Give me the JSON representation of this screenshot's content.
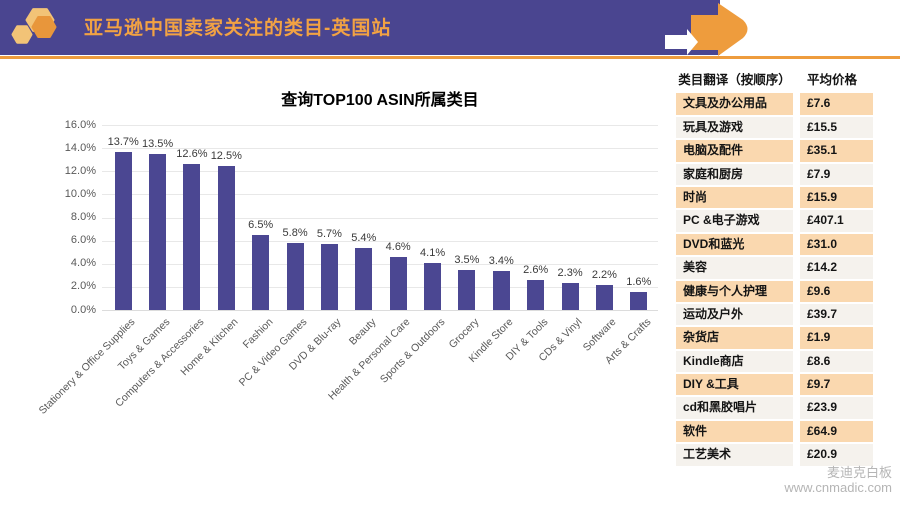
{
  "header": {
    "title": "亚马逊中国卖家关注的类目-英国站",
    "bg_color": "#4A4590",
    "title_color": "#F2A243",
    "accent_color": "#EE9C3D",
    "logo_icon": "hexagon-cluster-logo",
    "logo_colors": [
      "#F2C377",
      "#E8963B"
    ],
    "decor_icons": [
      "white-arrow",
      "orange-arrow"
    ]
  },
  "chart_data": {
    "type": "bar",
    "title": "查询TOP100 ASIN所属类目",
    "categories": [
      "Stationery & Office Supplies",
      "Toys & Games",
      "Computers & Accessories",
      "Home & Kitchen",
      "Fashion",
      "PC & Video Games",
      "DVD & Blu-ray",
      "Beauty",
      "Health & Personal Care",
      "Sports & Outdoors",
      "Grocery",
      "Kindle Store",
      "DIY & Tools",
      "CDs & Vinyl",
      "Software",
      "Arts & Crafts"
    ],
    "values": [
      13.7,
      13.5,
      12.6,
      12.5,
      6.5,
      5.8,
      5.7,
      5.4,
      4.6,
      4.1,
      3.5,
      3.4,
      2.6,
      2.3,
      2.2,
      1.6
    ],
    "value_suffix": "%",
    "ylim": [
      0,
      16
    ],
    "ytick_step": 2,
    "ytick_labels": [
      "0.0%",
      "2.0%",
      "4.0%",
      "6.0%",
      "8.0%",
      "10.0%",
      "12.0%",
      "14.0%",
      "16.0%"
    ],
    "bar_color": "#4B4792",
    "grid": true,
    "legend": null
  },
  "table": {
    "headers": [
      "类目翻译（按顺序）",
      "平均价格"
    ],
    "rows": [
      [
        "文具及办公用品",
        "£7.6"
      ],
      [
        "玩具及游戏",
        "£15.5"
      ],
      [
        "电脑及配件",
        "£35.1"
      ],
      [
        "家庭和厨房",
        "£7.9"
      ],
      [
        "时尚",
        "£15.9"
      ],
      [
        "PC &电子游戏",
        "£407.1"
      ],
      [
        "DVD和蓝光",
        "£31.0"
      ],
      [
        "美容",
        "£14.2"
      ],
      [
        "健康与个人护理",
        "£9.6"
      ],
      [
        "运动及户外",
        "£39.7"
      ],
      [
        "杂货店",
        "£1.9"
      ],
      [
        "Kindle商店",
        "£8.6"
      ],
      [
        "DIY &工具",
        "£9.7"
      ],
      [
        "cd和黑胶唱片",
        "£23.9"
      ],
      [
        "软件",
        "£64.9"
      ],
      [
        "工艺美术",
        "£20.9"
      ]
    ],
    "odd_row_color": "#FAD8AF",
    "even_row_color": "#F5F2ED"
  },
  "watermark": {
    "line1": "麦迪克白板",
    "line2": "www.cnmadic.com"
  }
}
